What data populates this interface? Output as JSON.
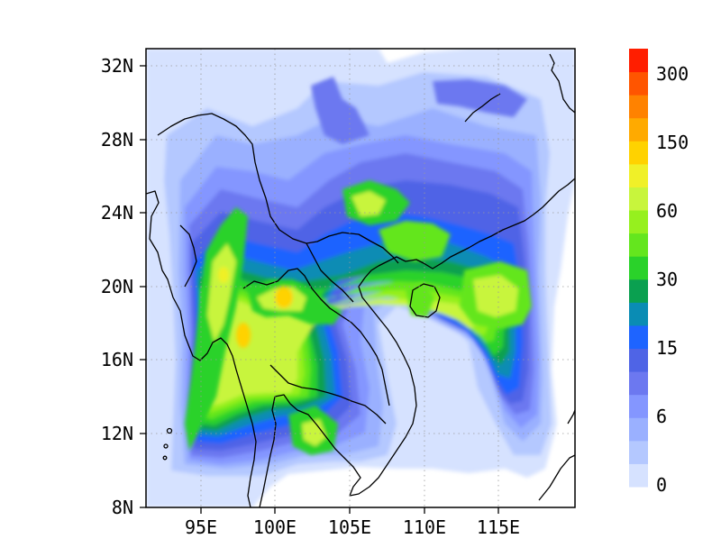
{
  "map": {
    "region": "Southeast Asia / South China",
    "lon_range": [
      91.5,
      119
    ],
    "lat_range": [
      8,
      32.5
    ],
    "x_ticks": [
      {
        "value": 95,
        "label": "95E"
      },
      {
        "value": 100,
        "label": "100E"
      },
      {
        "value": 105,
        "label": "105E"
      },
      {
        "value": 110,
        "label": "110E"
      },
      {
        "value": 115,
        "label": "115E"
      }
    ],
    "y_ticks": [
      {
        "value": 8,
        "label": "8N"
      },
      {
        "value": 12,
        "label": "12N"
      },
      {
        "value": 16,
        "label": "16N"
      },
      {
        "value": 20,
        "label": "20N"
      },
      {
        "value": 24,
        "label": "24N"
      },
      {
        "value": 28,
        "label": "28N"
      },
      {
        "value": 32,
        "label": "32N"
      }
    ],
    "gridlines": "dotted",
    "coastline_color": "#000000",
    "background_color": "#ffffff"
  },
  "colorbar": {
    "placement": "right",
    "labels": [
      "0",
      "6",
      "15",
      "30",
      "60",
      "150",
      "300"
    ],
    "colors": [
      "#d6e2ff",
      "#b4c8ff",
      "#9ab0ff",
      "#8496ff",
      "#6c78f0",
      "#4f64e6",
      "#1e64ff",
      "#0a8cb4",
      "#0aa050",
      "#2ad22a",
      "#64e61e",
      "#96f01e",
      "#c8f53c",
      "#f0f028",
      "#ffd200",
      "#ffaa00",
      "#ff8200",
      "#ff5500",
      "#ff1e00"
    ]
  },
  "chart_data": {
    "type": "heatmap",
    "title": "",
    "xlabel": "",
    "ylabel": "",
    "xlim": [
      91.5,
      119
    ],
    "ylim": [
      8,
      32.5
    ],
    "color_levels": [
      0,
      6,
      15,
      30,
      60,
      150,
      300
    ],
    "features": [
      {
        "lon": 97.5,
        "lat": 17.5,
        "value_class": "max ~100"
      },
      {
        "lon": 100.5,
        "lat": 19.5,
        "value_class": "max ~100"
      },
      {
        "lon": 96.5,
        "lat": 20.5,
        "value_class": "~60-80"
      },
      {
        "lon": 115.5,
        "lat": 19.5,
        "value_class": "~40-60"
      },
      {
        "lon": 109.5,
        "lat": 22.5,
        "value_class": "~40-60"
      },
      {
        "lon": 103.0,
        "lat": 11.5,
        "value_class": "~30-60"
      }
    ]
  }
}
